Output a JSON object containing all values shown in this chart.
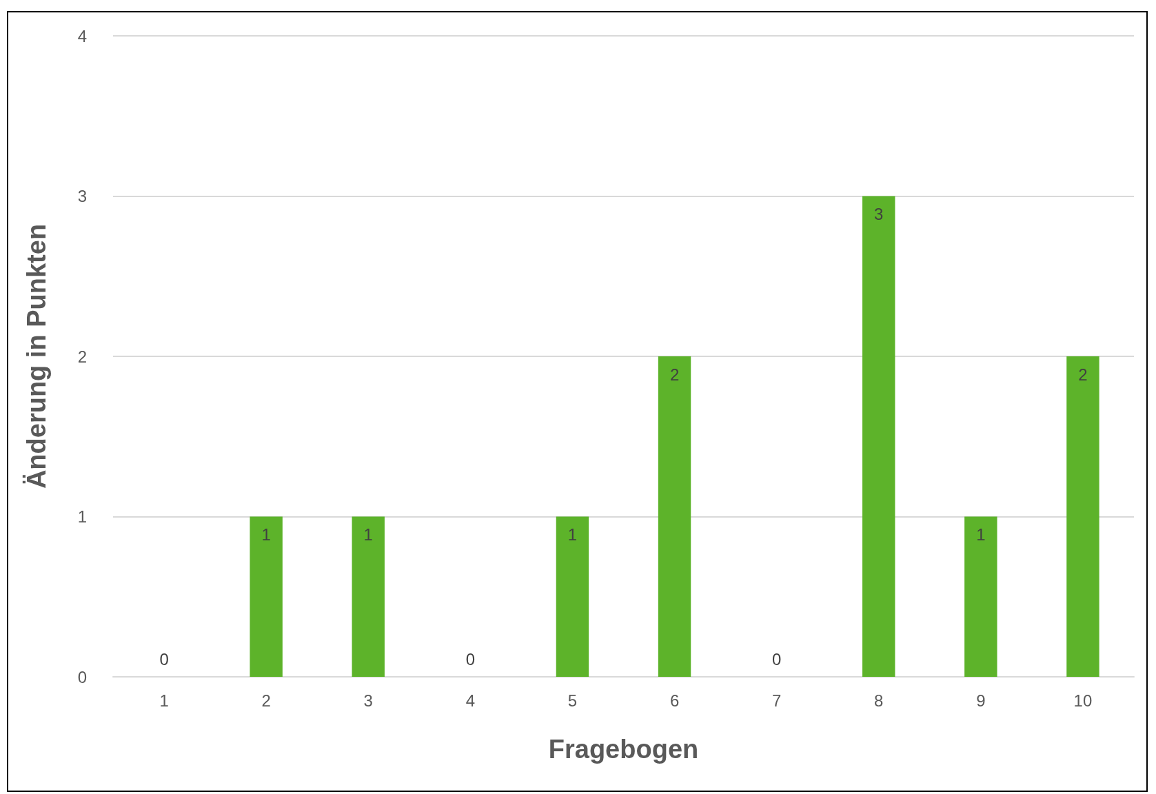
{
  "chart_data": {
    "type": "bar",
    "xlabel": "Fragebogen",
    "ylabel": "Änderung in Punkten",
    "categories": [
      "1",
      "2",
      "3",
      "4",
      "5",
      "6",
      "7",
      "8",
      "9",
      "10"
    ],
    "values": [
      0,
      1,
      1,
      0,
      1,
      2,
      0,
      3,
      1,
      2
    ],
    "color": "#5db32a",
    "ylim": [
      0,
      4
    ],
    "yticks": [
      0,
      1,
      2,
      3,
      4
    ],
    "grid": "y",
    "data_labels": true
  }
}
